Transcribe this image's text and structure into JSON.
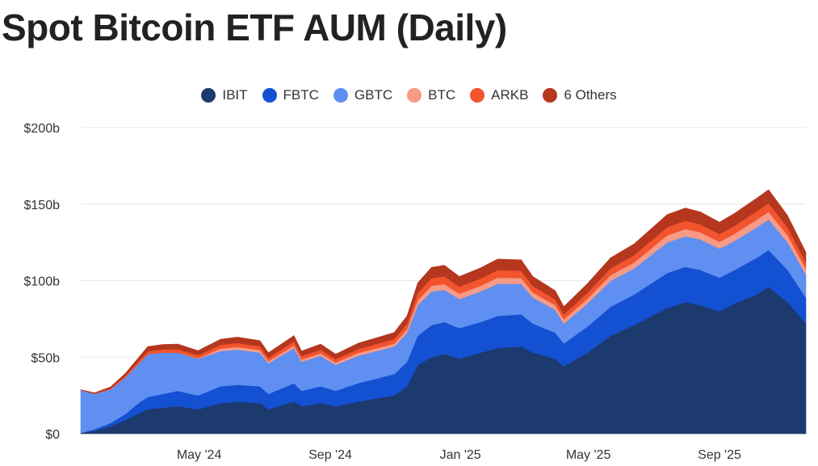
{
  "title": "Spot Bitcoin ETF AUM (Daily)",
  "chart_data": {
    "type": "area",
    "stacked": true,
    "title": "Spot Bitcoin ETF AUM (Daily)",
    "xlabel": "",
    "ylabel": "",
    "ylim": [
      0,
      200
    ],
    "y_unit": "billion USD",
    "y_ticks": [
      "$0",
      "$50b",
      "$100b",
      "$150b",
      "$200b"
    ],
    "x_ticks": [
      "May '24",
      "Sep '24",
      "Jan '25",
      "May '25",
      "Sep '25"
    ],
    "grid": "horizontal",
    "legend_position": "top-center",
    "x": [
      "2024-01-11",
      "2024-01-24",
      "2024-02-08",
      "2024-02-22",
      "2024-03-07",
      "2024-03-14",
      "2024-03-28",
      "2024-04-11",
      "2024-04-30",
      "2024-05-21",
      "2024-06-06",
      "2024-06-27",
      "2024-07-05",
      "2024-07-29",
      "2024-08-05",
      "2024-08-23",
      "2024-09-06",
      "2024-09-27",
      "2024-10-14",
      "2024-10-31",
      "2024-11-12",
      "2024-11-22",
      "2024-12-05",
      "2024-12-17",
      "2024-12-31",
      "2025-01-20",
      "2025-02-05",
      "2025-02-27",
      "2025-03-10",
      "2025-03-31",
      "2025-04-08",
      "2025-04-30",
      "2025-05-22",
      "2025-06-13",
      "2025-07-14",
      "2025-07-31",
      "2025-08-14",
      "2025-09-01",
      "2025-09-15",
      "2025-10-06",
      "2025-10-17",
      "2025-11-04",
      "2025-11-21"
    ],
    "series": [
      {
        "name": "IBIT",
        "color": "#1c3a6e",
        "values": [
          0.5,
          2,
          5,
          9,
          14,
          16,
          17,
          18,
          16,
          20,
          21,
          20,
          16,
          21,
          18,
          20,
          18,
          21,
          23,
          25,
          31,
          45,
          50,
          52,
          49,
          53,
          56,
          57,
          53,
          49,
          44,
          53,
          64,
          71,
          82,
          86,
          84,
          80,
          85,
          91,
          96,
          86,
          72
        ]
      },
      {
        "name": "FBTC",
        "color": "#1450d2",
        "values": [
          0,
          1,
          2,
          4,
          7,
          8,
          9,
          10,
          9,
          11,
          11,
          11,
          10,
          12,
          10,
          11,
          10,
          12,
          13,
          14,
          16,
          19,
          21,
          21,
          20,
          20,
          21,
          21,
          19,
          17,
          15,
          17,
          19,
          20,
          23,
          23,
          23,
          22,
          22,
          24,
          24,
          21,
          17
        ]
      },
      {
        "name": "GBTC",
        "color": "#5f8ff0",
        "values": [
          28,
          23,
          22,
          24,
          26,
          28,
          27,
          25,
          24,
          23,
          23,
          22,
          20,
          23,
          19,
          20,
          17,
          18,
          18,
          18,
          19,
          20,
          22,
          21,
          19,
          20,
          21,
          20,
          17,
          15,
          13,
          15,
          17,
          17,
          20,
          20,
          20,
          19,
          19,
          20,
          20,
          18,
          15
        ]
      },
      {
        "name": "BTC",
        "color": "#f79a86",
        "values": [
          0,
          0,
          0,
          0,
          0,
          0,
          0,
          0,
          0.3,
          1.6,
          1.7,
          1.6,
          1.4,
          1.7,
          1.5,
          1.6,
          1.5,
          1.7,
          1.8,
          1.9,
          2.4,
          3.3,
          3.7,
          3.8,
          3.5,
          3.7,
          3.9,
          3.8,
          3.3,
          3.0,
          2.7,
          3.2,
          3.7,
          4.0,
          4.6,
          4.7,
          4.6,
          4.4,
          4.6,
          4.9,
          5.0,
          4.5,
          3.8
        ]
      },
      {
        "name": "ARKB",
        "color": "#f2542d",
        "values": [
          0,
          0.2,
          0.6,
          1.0,
          1.8,
          2.0,
          2.1,
          2.2,
          2.0,
          2.5,
          2.6,
          2.5,
          2.2,
          2.6,
          2.2,
          2.4,
          2.2,
          2.6,
          2.8,
          3.0,
          3.6,
          4.7,
          5.0,
          5.1,
          4.6,
          4.8,
          5.0,
          4.8,
          4.2,
          3.8,
          3.3,
          3.9,
          4.5,
          4.8,
          5.4,
          5.5,
          5.3,
          5.1,
          5.3,
          5.6,
          5.7,
          5.1,
          4.2
        ]
      },
      {
        "name": "6 Others",
        "color": "#b4371e",
        "values": [
          0.2,
          0.5,
          1.0,
          1.5,
          2.5,
          3.0,
          3.2,
          3.4,
          3.0,
          3.6,
          3.8,
          3.7,
          3.3,
          3.8,
          3.3,
          3.6,
          3.3,
          3.8,
          4.0,
          4.3,
          5.0,
          6.5,
          7.0,
          7.2,
          6.6,
          6.9,
          7.2,
          7.0,
          6.2,
          5.6,
          5.0,
          5.9,
          6.8,
          7.2,
          8.2,
          8.3,
          8.0,
          7.7,
          8.0,
          8.5,
          8.7,
          7.8,
          6.5
        ]
      }
    ]
  }
}
